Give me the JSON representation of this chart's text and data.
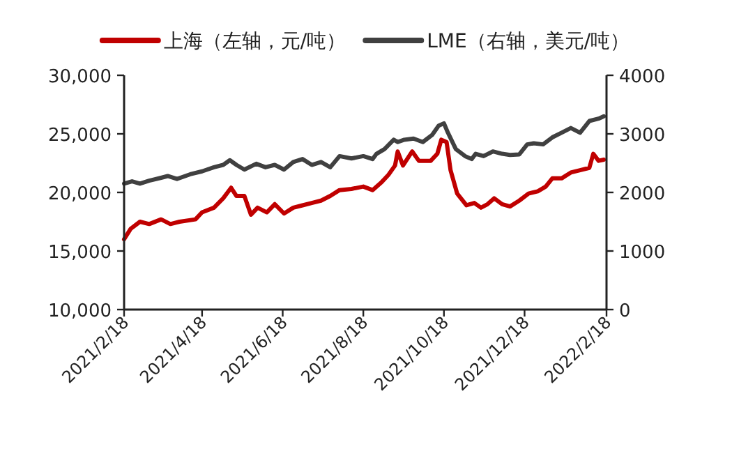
{
  "chart_data": {
    "type": "line",
    "legend": "top",
    "line_style": "solid",
    "marker": "none",
    "xlim": [
      "2021-02-18",
      "2022-02-18"
    ],
    "xticks": [
      {
        "value": "2021-02-18",
        "label": "2021/2/18"
      },
      {
        "value": "2021-04-18",
        "label": "2021/4/18"
      },
      {
        "value": "2021-06-18",
        "label": "2021/6/18"
      },
      {
        "value": "2021-08-18",
        "label": "2021/8/18"
      },
      {
        "value": "2021-10-18",
        "label": "2021/10/18"
      },
      {
        "value": "2021-12-18",
        "label": "2021/12/18"
      },
      {
        "value": "2022-02-18",
        "label": "2022/2/18"
      }
    ],
    "ylim": [
      10000,
      30000
    ],
    "yticks": [
      {
        "value": 10000,
        "label": "10,000"
      },
      {
        "value": 15000,
        "label": "15,000"
      },
      {
        "value": 20000,
        "label": "20,000"
      },
      {
        "value": 25000,
        "label": "25,000"
      },
      {
        "value": 30000,
        "label": "30,000"
      }
    ],
    "y2lim": [
      0,
      4000
    ],
    "y2ticks": [
      0,
      1000,
      2000,
      3000,
      4000
    ],
    "series": [
      {
        "name": "上海（左轴，元/吨）",
        "color": "#c00000",
        "x": [
          "2021-02-18",
          "2021-02-23",
          "2021-03-02",
          "2021-03-09",
          "2021-03-18",
          "2021-03-25",
          "2021-04-01",
          "2021-04-13",
          "2021-04-18",
          "2021-04-27",
          "2021-05-04",
          "2021-05-10",
          "2021-05-14",
          "2021-05-20",
          "2021-05-25",
          "2021-05-30",
          "2021-06-06",
          "2021-06-12",
          "2021-06-19",
          "2021-06-26",
          "2021-07-03",
          "2021-07-10",
          "2021-07-17",
          "2021-07-24",
          "2021-07-31",
          "2021-08-09",
          "2021-08-18",
          "2021-08-25",
          "2021-09-01",
          "2021-09-06",
          "2021-09-11",
          "2021-09-13",
          "2021-09-17",
          "2021-09-24",
          "2021-09-29",
          "2021-10-08",
          "2021-10-13",
          "2021-10-16",
          "2021-10-20",
          "2021-10-23",
          "2021-10-28",
          "2021-11-04",
          "2021-11-10",
          "2021-11-15",
          "2021-11-20",
          "2021-11-25",
          "2021-12-01",
          "2021-12-07",
          "2021-12-14",
          "2021-12-21",
          "2021-12-28",
          "2022-01-03",
          "2022-01-08",
          "2022-01-15",
          "2022-01-22",
          "2022-01-29",
          "2022-02-05",
          "2022-02-08",
          "2022-02-12",
          "2022-02-16"
        ],
        "values": [
          16000,
          16900,
          17500,
          17300,
          17700,
          17300,
          17500,
          17700,
          18300,
          18700,
          19500,
          20400,
          19700,
          19700,
          18100,
          18700,
          18300,
          19000,
          18200,
          18700,
          18900,
          19100,
          19300,
          19700,
          20200,
          20300,
          20500,
          20200,
          20900,
          21500,
          22300,
          23500,
          22300,
          23500,
          22700,
          22700,
          23300,
          24500,
          24300,
          21900,
          19900,
          18900,
          19100,
          18700,
          19000,
          19500,
          19000,
          18800,
          19300,
          19900,
          20100,
          20500,
          21200,
          21200,
          21700,
          21900,
          22100,
          23300,
          22700,
          22800
        ]
      },
      {
        "name": "LME（右轴，美元/吨）",
        "color": "#404040",
        "axis": "y2",
        "x": [
          "2021-02-18",
          "2021-02-24",
          "2021-03-02",
          "2021-03-09",
          "2021-03-18",
          "2021-03-23",
          "2021-03-30",
          "2021-04-09",
          "2021-04-18",
          "2021-04-27",
          "2021-05-04",
          "2021-05-09",
          "2021-05-14",
          "2021-05-20",
          "2021-05-29",
          "2021-06-05",
          "2021-06-12",
          "2021-06-19",
          "2021-06-26",
          "2021-07-03",
          "2021-07-10",
          "2021-07-17",
          "2021-07-24",
          "2021-07-31",
          "2021-08-09",
          "2021-08-18",
          "2021-08-25",
          "2021-08-28",
          "2021-09-03",
          "2021-09-10",
          "2021-09-13",
          "2021-09-18",
          "2021-09-25",
          "2021-10-02",
          "2021-10-09",
          "2021-10-14",
          "2021-10-18",
          "2021-10-21",
          "2021-10-27",
          "2021-11-03",
          "2021-11-08",
          "2021-11-11",
          "2021-11-17",
          "2021-11-24",
          "2021-12-01",
          "2021-12-07",
          "2021-12-14",
          "2021-12-20",
          "2021-12-25",
          "2022-01-01",
          "2022-01-08",
          "2022-01-15",
          "2022-01-22",
          "2022-01-29",
          "2022-02-05",
          "2022-02-12",
          "2022-02-16"
        ],
        "values": [
          2150,
          2190,
          2150,
          2200,
          2250,
          2280,
          2230,
          2310,
          2360,
          2430,
          2470,
          2550,
          2470,
          2390,
          2490,
          2430,
          2470,
          2390,
          2520,
          2570,
          2470,
          2520,
          2430,
          2620,
          2580,
          2620,
          2570,
          2660,
          2740,
          2900,
          2860,
          2900,
          2920,
          2860,
          2980,
          3140,
          3180,
          3020,
          2740,
          2620,
          2570,
          2660,
          2620,
          2700,
          2660,
          2640,
          2650,
          2820,
          2840,
          2820,
          2940,
          3020,
          3100,
          3020,
          3220,
          3260,
          3300
        ]
      }
    ]
  }
}
